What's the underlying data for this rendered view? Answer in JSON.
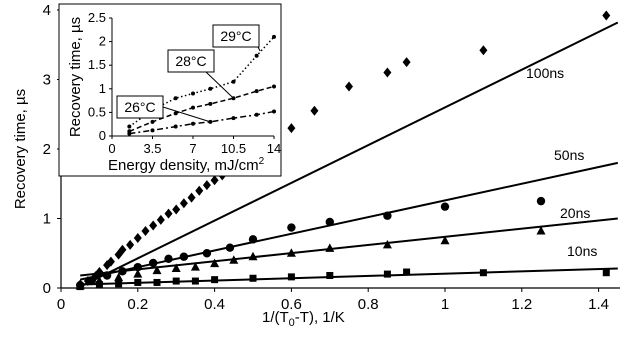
{
  "chart_data": [
    {
      "type": "scatter",
      "xlabel": "1/(T0-T), 1/K",
      "ylabel": "Recovery time, µs",
      "xlim": [
        0,
        1.5
      ],
      "ylim": [
        0,
        4
      ],
      "xticks": [
        "0",
        "0.2",
        "0.4",
        "0.6",
        "0.8",
        "1",
        "1.2",
        "1.4"
      ],
      "yticks": [
        "0",
        "1",
        "2",
        "3",
        "4"
      ],
      "series": [
        {
          "name": "100ns",
          "marker": "diamond",
          "points": [
            [
              0.05,
              0.05
            ],
            [
              0.07,
              0.1
            ],
            [
              0.09,
              0.17
            ],
            [
              0.1,
              0.23
            ],
            [
              0.12,
              0.33
            ],
            [
              0.13,
              0.38
            ],
            [
              0.15,
              0.48
            ],
            [
              0.16,
              0.55
            ],
            [
              0.18,
              0.62
            ],
            [
              0.2,
              0.72
            ],
            [
              0.22,
              0.82
            ],
            [
              0.24,
              0.9
            ],
            [
              0.26,
              0.98
            ],
            [
              0.28,
              1.07
            ],
            [
              0.3,
              1.13
            ],
            [
              0.32,
              1.22
            ],
            [
              0.34,
              1.3
            ],
            [
              0.36,
              1.4
            ],
            [
              0.38,
              1.48
            ],
            [
              0.4,
              1.55
            ],
            [
              0.42,
              1.62
            ],
            [
              0.44,
              1.68
            ],
            [
              0.46,
              1.75
            ],
            [
              0.48,
              1.82
            ],
            [
              0.5,
              1.9
            ],
            [
              0.53,
              2.0
            ],
            [
              0.56,
              2.1
            ],
            [
              0.6,
              2.3
            ],
            [
              0.66,
              2.55
            ],
            [
              0.75,
              2.9
            ],
            [
              0.85,
              3.1
            ],
            [
              0.9,
              3.25
            ],
            [
              1.1,
              3.42
            ],
            [
              1.42,
              3.92
            ]
          ],
          "fit": [
            [
              0.05,
              0.02
            ],
            [
              1.45,
              3.82
            ]
          ]
        },
        {
          "name": "50ns",
          "marker": "circle",
          "points": [
            [
              0.05,
              0.04
            ],
            [
              0.08,
              0.1
            ],
            [
              0.12,
              0.18
            ],
            [
              0.16,
              0.24
            ],
            [
              0.2,
              0.3
            ],
            [
              0.24,
              0.36
            ],
            [
              0.28,
              0.42
            ],
            [
              0.32,
              0.45
            ],
            [
              0.38,
              0.5
            ],
            [
              0.44,
              0.58
            ],
            [
              0.5,
              0.7
            ],
            [
              0.6,
              0.87
            ],
            [
              0.7,
              0.95
            ],
            [
              0.85,
              1.04
            ],
            [
              1.0,
              1.17
            ],
            [
              1.25,
              1.25
            ]
          ],
          "fit": [
            [
              0.05,
              0.12
            ],
            [
              1.45,
              1.8
            ]
          ]
        },
        {
          "name": "20ns",
          "marker": "triangle",
          "points": [
            [
              0.05,
              0.03
            ],
            [
              0.1,
              0.1
            ],
            [
              0.15,
              0.15
            ],
            [
              0.2,
              0.2
            ],
            [
              0.25,
              0.25
            ],
            [
              0.3,
              0.28
            ],
            [
              0.35,
              0.3
            ],
            [
              0.4,
              0.35
            ],
            [
              0.45,
              0.4
            ],
            [
              0.5,
              0.45
            ],
            [
              0.6,
              0.5
            ],
            [
              0.7,
              0.57
            ],
            [
              0.85,
              0.62
            ],
            [
              1.0,
              0.68
            ],
            [
              1.25,
              0.82
            ]
          ],
          "fit": [
            [
              0.05,
              0.18
            ],
            [
              1.45,
              1.0
            ]
          ]
        },
        {
          "name": "10ns",
          "marker": "square",
          "points": [
            [
              0.05,
              0.02
            ],
            [
              0.1,
              0.05
            ],
            [
              0.15,
              0.06
            ],
            [
              0.2,
              0.08
            ],
            [
              0.25,
              0.08
            ],
            [
              0.3,
              0.1
            ],
            [
              0.35,
              0.1
            ],
            [
              0.4,
              0.12
            ],
            [
              0.5,
              0.14
            ],
            [
              0.6,
              0.16
            ],
            [
              0.7,
              0.18
            ],
            [
              0.85,
              0.2
            ],
            [
              0.9,
              0.23
            ],
            [
              1.1,
              0.22
            ],
            [
              1.42,
              0.22
            ]
          ],
          "fit": [
            [
              0.05,
              0.05
            ],
            [
              1.45,
              0.28
            ]
          ]
        }
      ]
    },
    {
      "type": "line",
      "xlabel": "Energy density, mJ/cm²",
      "ylabel": "Recovery time, µs",
      "xlim": [
        0,
        14
      ],
      "ylim": [
        0,
        2.5
      ],
      "xticks": [
        "0",
        "3.5",
        "7",
        "10.5",
        "14"
      ],
      "yticks": [
        "0",
        "0.5",
        "1",
        "1.5",
        "2",
        "2.5"
      ],
      "series": [
        {
          "name": "26°C",
          "style": "dash-dot",
          "points": [
            [
              1.5,
              0.05
            ],
            [
              3.5,
              0.12
            ],
            [
              5.5,
              0.2
            ],
            [
              7,
              0.26
            ],
            [
              8.5,
              0.3
            ],
            [
              10.5,
              0.38
            ],
            [
              12.5,
              0.45
            ],
            [
              14,
              0.52
            ]
          ]
        },
        {
          "name": "28°C",
          "style": "dashed",
          "points": [
            [
              1.5,
              0.1
            ],
            [
              3.5,
              0.3
            ],
            [
              5.5,
              0.48
            ],
            [
              7,
              0.6
            ],
            [
              8.5,
              0.68
            ],
            [
              10.5,
              0.8
            ],
            [
              12.5,
              0.95
            ],
            [
              14,
              1.05
            ]
          ]
        },
        {
          "name": "29°C",
          "style": "dotted",
          "points": [
            [
              1.5,
              0.2
            ],
            [
              3.5,
              0.55
            ],
            [
              5.5,
              0.8
            ],
            [
              7,
              0.9
            ],
            [
              8.5,
              1.0
            ],
            [
              10.5,
              1.15
            ],
            [
              12.5,
              1.7
            ],
            [
              14,
              2.1
            ]
          ]
        }
      ]
    }
  ]
}
